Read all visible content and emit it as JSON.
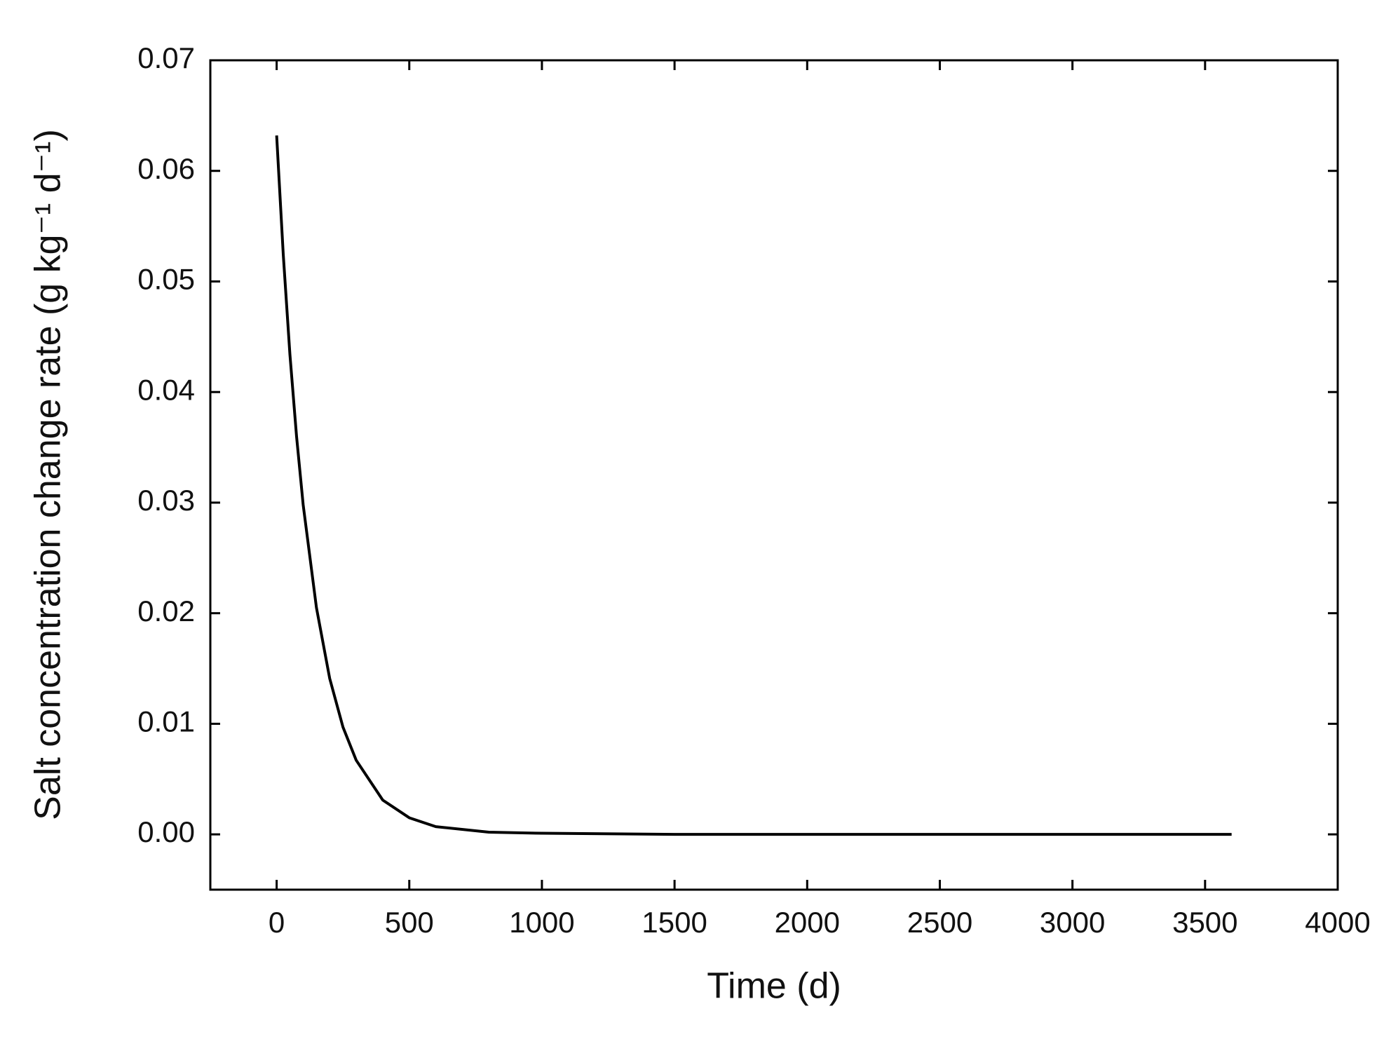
{
  "chart_data": {
    "type": "line",
    "x_label": "Time (d)",
    "y_label": "Salt concentration change rate (g kg⁻¹ d⁻¹)",
    "x": [
      0,
      25,
      50,
      75,
      100,
      150,
      200,
      250,
      300,
      400,
      500,
      600,
      800,
      1000,
      1500,
      2000,
      2500,
      3000,
      3600
    ],
    "series": [
      {
        "color": "#000000",
        "values": [
          0.0632,
          0.0524,
          0.0434,
          0.036,
          0.0298,
          0.0205,
          0.0141,
          0.0097,
          0.0067,
          0.0031,
          0.0015,
          0.0007,
          0.0002,
          0.0001,
          0,
          0,
          0,
          0,
          0
        ]
      }
    ],
    "xlim": [
      -250,
      4000
    ],
    "xticks": [
      0,
      500,
      1000,
      1500,
      2000,
      2500,
      3000,
      3500,
      4000
    ],
    "ylim": [
      -0.005,
      0.07
    ],
    "yticks": [
      {
        "value": 0,
        "label": "0.00"
      },
      0.01,
      0.02,
      0.03,
      0.04,
      0.05,
      0.06,
      0.07
    ],
    "grid": false
  }
}
